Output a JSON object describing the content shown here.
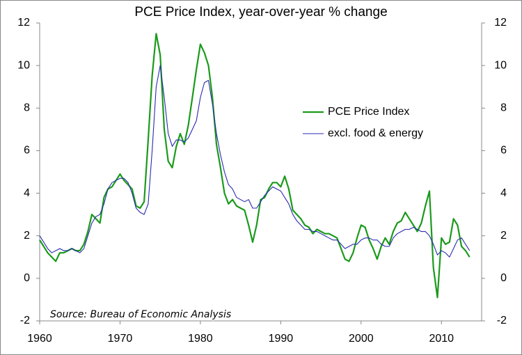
{
  "chart_data": {
    "type": "line",
    "title": "PCE Price Index, year-over-year % change",
    "annotation": "Source: Bureau of Economic Analysis",
    "x": [
      1960,
      1960.5,
      1961,
      1961.5,
      1962,
      1962.5,
      1963,
      1963.5,
      1964,
      1964.5,
      1965,
      1965.5,
      1966,
      1966.5,
      1967,
      1967.5,
      1968,
      1968.5,
      1969,
      1969.5,
      1970,
      1970.5,
      1971,
      1971.5,
      1972,
      1972.5,
      1973,
      1973.5,
      1974,
      1974.5,
      1975,
      1975.5,
      1976,
      1976.5,
      1977,
      1977.5,
      1978,
      1978.5,
      1979,
      1979.5,
      1980,
      1980.5,
      1981,
      1981.5,
      1982,
      1982.5,
      1983,
      1983.5,
      1984,
      1984.5,
      1985,
      1985.5,
      1986,
      1986.5,
      1987,
      1987.5,
      1988,
      1988.5,
      1989,
      1989.5,
      1990,
      1990.5,
      1991,
      1991.5,
      1992,
      1992.5,
      1993,
      1993.5,
      1994,
      1994.5,
      1995,
      1995.5,
      1996,
      1996.5,
      1997,
      1997.5,
      1998,
      1998.5,
      1999,
      1999.5,
      2000,
      2000.5,
      2001,
      2001.5,
      2002,
      2002.5,
      2003,
      2003.5,
      2004,
      2004.5,
      2005,
      2005.5,
      2006,
      2006.5,
      2007,
      2007.5,
      2008,
      2008.5,
      2009,
      2009.5,
      2010,
      2010.5,
      2011,
      2011.5,
      2012,
      2012.5,
      2013,
      2013.5
    ],
    "series": [
      {
        "name": "PCE Price Index",
        "color": "#1a9a1a",
        "width": 2.2,
        "values": [
          1.8,
          1.5,
          1.2,
          1.0,
          0.8,
          1.2,
          1.2,
          1.3,
          1.4,
          1.3,
          1.3,
          1.6,
          2.2,
          3.0,
          2.8,
          2.6,
          3.8,
          4.2,
          4.3,
          4.6,
          4.9,
          4.6,
          4.4,
          4.2,
          3.4,
          3.3,
          3.6,
          6.5,
          9.5,
          11.5,
          10.5,
          7.0,
          5.5,
          5.2,
          6.2,
          6.8,
          6.3,
          7.2,
          8.5,
          9.8,
          11.0,
          10.6,
          10.0,
          8.5,
          6.3,
          5.2,
          4.0,
          3.5,
          3.7,
          3.4,
          3.3,
          3.2,
          2.5,
          1.7,
          2.5,
          3.7,
          3.8,
          4.2,
          4.5,
          4.5,
          4.3,
          4.8,
          4.2,
          3.2,
          3.0,
          2.8,
          2.5,
          2.4,
          2.1,
          2.3,
          2.2,
          2.1,
          2.1,
          2.0,
          1.9,
          1.4,
          0.9,
          0.8,
          1.2,
          1.9,
          2.5,
          2.4,
          1.8,
          1.4,
          0.9,
          1.5,
          1.9,
          1.6,
          2.2,
          2.6,
          2.7,
          3.1,
          2.8,
          2.5,
          2.2,
          2.6,
          3.4,
          4.1,
          0.5,
          -0.9,
          1.9,
          1.6,
          1.7,
          2.8,
          2.5,
          1.5,
          1.3,
          1.0
        ]
      },
      {
        "name": "excl. food & energy",
        "color": "#2a2ab0",
        "width": 1.1,
        "values": [
          2.0,
          1.7,
          1.4,
          1.2,
          1.3,
          1.4,
          1.3,
          1.3,
          1.4,
          1.3,
          1.2,
          1.4,
          2.0,
          2.6,
          2.9,
          3.0,
          3.5,
          4.2,
          4.5,
          4.6,
          4.7,
          4.7,
          4.5,
          4.0,
          3.3,
          3.1,
          3.0,
          3.5,
          6.0,
          9.0,
          10.0,
          8.5,
          6.8,
          6.2,
          6.5,
          6.5,
          6.4,
          6.6,
          7.0,
          7.4,
          8.5,
          9.2,
          9.3,
          8.2,
          6.8,
          5.8,
          5.0,
          4.4,
          4.2,
          3.8,
          3.7,
          3.6,
          3.7,
          3.3,
          3.3,
          3.6,
          3.9,
          4.1,
          4.3,
          4.2,
          4.1,
          3.8,
          3.5,
          3.0,
          2.7,
          2.5,
          2.3,
          2.3,
          2.2,
          2.2,
          2.1,
          2.0,
          1.9,
          1.8,
          1.8,
          1.6,
          1.4,
          1.5,
          1.6,
          1.6,
          1.8,
          1.9,
          1.9,
          1.8,
          1.8,
          1.6,
          1.5,
          1.5,
          1.9,
          2.1,
          2.2,
          2.3,
          2.3,
          2.4,
          2.3,
          2.2,
          2.2,
          2.0,
          1.6,
          1.1,
          1.3,
          1.2,
          1.0,
          1.4,
          1.8,
          1.9,
          1.6,
          1.3
        ]
      }
    ],
    "xlim": [
      1960,
      2015
    ],
    "xticks": [
      1960,
      1970,
      1980,
      1990,
      2000,
      2010
    ],
    "ylim": [
      -2,
      12
    ],
    "yticks": [
      -2,
      0,
      2,
      4,
      6,
      8,
      10,
      12
    ],
    "y2lim": [
      -2,
      12
    ],
    "y2ticks": [
      -2,
      0,
      2,
      4,
      6,
      8,
      10,
      12
    ],
    "legend": "upper right"
  }
}
